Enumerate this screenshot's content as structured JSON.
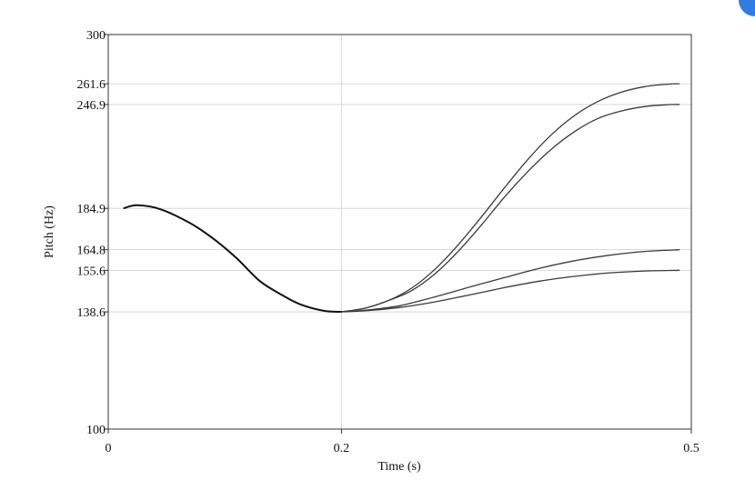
{
  "chart_data": {
    "type": "line",
    "title": "",
    "xlabel": "Time (s)",
    "ylabel": "Pitch (Hz)",
    "xlim": [
      0,
      0.5
    ],
    "ylim": [
      100,
      300
    ],
    "x_ticks": [
      {
        "value": 0,
        "label": "0"
      },
      {
        "value": 0.2,
        "label": "0.2"
      },
      {
        "value": 0.5,
        "label": "0.5"
      }
    ],
    "y_ticks": [
      {
        "value": 100,
        "label": "100"
      },
      {
        "value": 138.6,
        "label": "138.6"
      },
      {
        "value": 155.6,
        "label": "155.6"
      },
      {
        "value": 164.8,
        "label": "164.8"
      },
      {
        "value": 184.9,
        "label": "184.9"
      },
      {
        "value": 246.9,
        "label": "246.9"
      },
      {
        "value": 261.6,
        "label": "261.6"
      },
      {
        "value": 300,
        "label": "300"
      }
    ],
    "grid": true,
    "common": {
      "x": [
        0.013,
        0.025,
        0.045,
        0.07,
        0.09,
        0.11,
        0.13,
        0.15,
        0.165,
        0.185,
        0.2
      ],
      "y": [
        184.9,
        186.5,
        184.4,
        177.5,
        170.0,
        161.0,
        151.0,
        145.0,
        141.5,
        139.0,
        138.6
      ]
    },
    "series": [
      {
        "x": [
          0.2,
          0.22,
          0.24,
          0.26,
          0.28,
          0.3,
          0.32,
          0.34,
          0.36,
          0.38,
          0.4,
          0.42,
          0.44,
          0.46,
          0.48,
          0.49
        ],
        "y": [
          138.6,
          140.0,
          143.0,
          148.0,
          156.0,
          167.0,
          180.5,
          196.0,
          212.0,
          227.0,
          239.5,
          249.0,
          255.5,
          259.5,
          261.3,
          261.6
        ]
      },
      {
        "x": [
          0.2,
          0.22,
          0.24,
          0.26,
          0.28,
          0.3,
          0.32,
          0.34,
          0.36,
          0.38,
          0.4,
          0.42,
          0.44,
          0.46,
          0.48,
          0.49
        ],
        "y": [
          138.6,
          140.0,
          143.0,
          147.0,
          154.0,
          164.0,
          176.5,
          191.0,
          205.0,
          218.0,
          229.0,
          237.5,
          242.5,
          245.5,
          246.8,
          246.9
        ]
      },
      {
        "x": [
          0.2,
          0.22,
          0.25,
          0.28,
          0.31,
          0.34,
          0.37,
          0.4,
          0.43,
          0.46,
          0.49
        ],
        "y": [
          138.6,
          139.2,
          141.0,
          144.5,
          148.5,
          152.5,
          156.5,
          159.8,
          162.3,
          164.0,
          164.8
        ]
      },
      {
        "x": [
          0.2,
          0.22,
          0.25,
          0.28,
          0.31,
          0.34,
          0.37,
          0.4,
          0.43,
          0.46,
          0.49
        ],
        "y": [
          138.6,
          139.0,
          140.3,
          142.5,
          145.3,
          148.3,
          151.0,
          153.0,
          154.5,
          155.3,
          155.6
        ]
      }
    ]
  }
}
